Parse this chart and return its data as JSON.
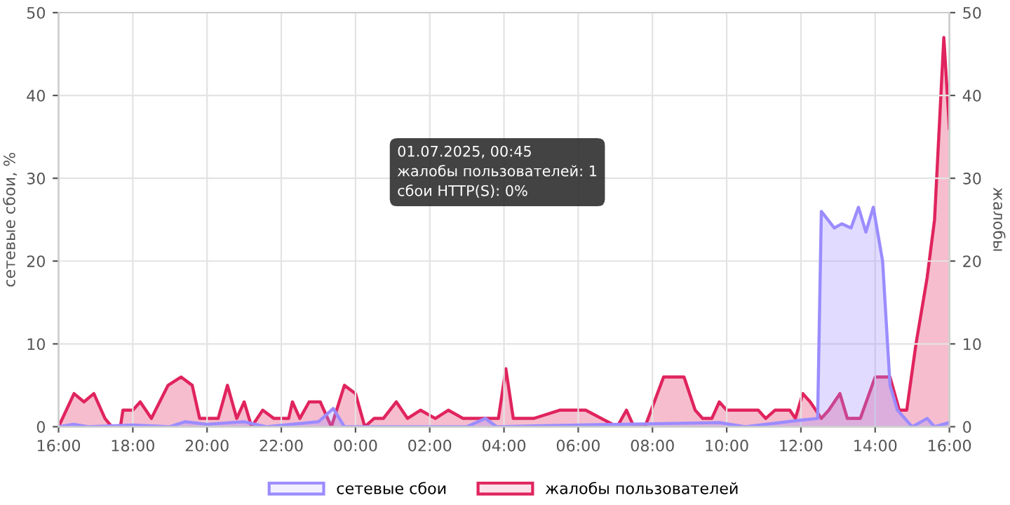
{
  "chart_data": {
    "type": "area",
    "ylabel": "сетевые сбои, %",
    "y2label": "жалобы",
    "xlim": [
      "2025-06-30T16:00",
      "2025-07-01T16:00"
    ],
    "xticks": [
      {
        "value": "2025-06-30T16:00",
        "label": "16:00"
      },
      {
        "value": "2025-06-30T18:00",
        "label": "18:00"
      },
      {
        "value": "2025-06-30T20:00",
        "label": "20:00"
      },
      {
        "value": "2025-06-30T22:00",
        "label": "22:00"
      },
      {
        "value": "2025-07-01T00:00",
        "label": "00:00"
      },
      {
        "value": "2025-07-01T02:00",
        "label": "02:00"
      },
      {
        "value": "2025-07-01T04:00",
        "label": "04:00"
      },
      {
        "value": "2025-07-01T06:00",
        "label": "06:00"
      },
      {
        "value": "2025-07-01T08:00",
        "label": "08:00"
      },
      {
        "value": "2025-07-01T10:00",
        "label": "10:00"
      },
      {
        "value": "2025-07-01T12:00",
        "label": "12:00"
      },
      {
        "value": "2025-07-01T14:00",
        "label": "14:00"
      },
      {
        "value": "2025-07-01T16:00",
        "label": "16:00"
      }
    ],
    "ylim": [
      0,
      50
    ],
    "yticks": [
      0,
      10,
      20,
      30,
      40,
      50
    ],
    "y2lim": [
      0,
      50
    ],
    "y2ticks": [
      0,
      10,
      20,
      30,
      40,
      50
    ],
    "grid": true,
    "legend": "bottom",
    "line_style": "solid",
    "series": [
      {
        "name": "сетевые сбои",
        "color": "#9b8cff",
        "axis": "y",
        "x": [
          "2025-06-30T16:00",
          "2025-06-30T16:24",
          "2025-06-30T16:48",
          "2025-06-30T18:00",
          "2025-06-30T19:00",
          "2025-06-30T19:24",
          "2025-06-30T20:00",
          "2025-06-30T21:00",
          "2025-06-30T21:36",
          "2025-06-30T23:00",
          "2025-06-30T23:24",
          "2025-06-30T23:42",
          "2025-07-01T03:00",
          "2025-07-01T03:30",
          "2025-07-01T03:48",
          "2025-07-01T06:00",
          "2025-07-01T09:48",
          "2025-07-01T10:30",
          "2025-07-01T12:00",
          "2025-07-01T12:27",
          "2025-07-01T12:33",
          "2025-07-01T12:54",
          "2025-07-01T13:06",
          "2025-07-01T13:21",
          "2025-07-01T13:33",
          "2025-07-01T13:45",
          "2025-07-01T13:57",
          "2025-07-01T14:12",
          "2025-07-01T14:24",
          "2025-07-01T14:36",
          "2025-07-01T15:00",
          "2025-07-01T15:24",
          "2025-07-01T15:36",
          "2025-07-01T16:00"
        ],
        "values": [
          0,
          0.3,
          0,
          0.2,
          0,
          0.6,
          0.3,
          0.6,
          0,
          0.6,
          2.2,
          0,
          0,
          1,
          0,
          0.2,
          0.5,
          0,
          0.8,
          1,
          26,
          24,
          24.5,
          24,
          26.5,
          23.5,
          26.5,
          20,
          5,
          2,
          0,
          1,
          0,
          0.5
        ]
      },
      {
        "name": "жалобы пользователей",
        "color": "#e0245e",
        "axis": "y2",
        "x": [
          "2025-06-30T16:00",
          "2025-06-30T16:25",
          "2025-06-30T16:41",
          "2025-06-30T16:57",
          "2025-06-30T17:15",
          "2025-06-30T17:26",
          "2025-06-30T17:40",
          "2025-06-30T17:44",
          "2025-06-30T18:00",
          "2025-06-30T18:12",
          "2025-06-30T18:30",
          "2025-06-30T18:57",
          "2025-06-30T19:18",
          "2025-06-30T19:36",
          "2025-06-30T19:48",
          "2025-06-30T20:18",
          "2025-06-30T20:33",
          "2025-06-30T20:48",
          "2025-06-30T21:00",
          "2025-06-30T21:12",
          "2025-06-30T21:30",
          "2025-06-30T21:48",
          "2025-06-30T22:12",
          "2025-06-30T22:18",
          "2025-06-30T22:30",
          "2025-06-30T22:45",
          "2025-06-30T23:03",
          "2025-06-30T23:21",
          "2025-06-30T23:42",
          "2025-07-01T00:00",
          "2025-07-01T00:15",
          "2025-07-01T00:30",
          "2025-07-01T00:45",
          "2025-07-01T01:06",
          "2025-07-01T01:24",
          "2025-07-01T01:45",
          "2025-07-01T02:09",
          "2025-07-01T02:30",
          "2025-07-01T02:54",
          "2025-07-01T03:51",
          "2025-07-01T04:03",
          "2025-07-01T04:15",
          "2025-07-01T04:48",
          "2025-07-01T05:30",
          "2025-07-01T06:12",
          "2025-07-01T07:03",
          "2025-07-01T07:18",
          "2025-07-01T07:30",
          "2025-07-01T07:48",
          "2025-07-01T08:18",
          "2025-07-01T08:51",
          "2025-07-01T09:09",
          "2025-07-01T09:21",
          "2025-07-01T09:36",
          "2025-07-01T09:48",
          "2025-07-01T10:00",
          "2025-07-01T10:51",
          "2025-07-01T11:03",
          "2025-07-01T11:18",
          "2025-07-01T11:42",
          "2025-07-01T11:51",
          "2025-07-01T12:03",
          "2025-07-01T12:15",
          "2025-07-01T12:33",
          "2025-07-01T12:45",
          "2025-07-01T13:03",
          "2025-07-01T13:15",
          "2025-07-01T13:36",
          "2025-07-01T14:00",
          "2025-07-01T14:24",
          "2025-07-01T14:39",
          "2025-07-01T14:51",
          "2025-07-01T15:06",
          "2025-07-01T15:24",
          "2025-07-01T15:36",
          "2025-07-01T15:51",
          "2025-07-01T16:00"
        ],
        "values": [
          0,
          4,
          3,
          4,
          1,
          0,
          0,
          2,
          2,
          3,
          1,
          5,
          6,
          5,
          1,
          1,
          5,
          1,
          3,
          0,
          2,
          1,
          1,
          3,
          1,
          3,
          3,
          0,
          5,
          4,
          0,
          1,
          1,
          3,
          1,
          2,
          1,
          2,
          1,
          1,
          7,
          1,
          1,
          2,
          2,
          0,
          2,
          0,
          0,
          6,
          6,
          2,
          1,
          1,
          3,
          2,
          2,
          1,
          2,
          2,
          1,
          4,
          3,
          1,
          2,
          4,
          1,
          1,
          6,
          6,
          2,
          2,
          10,
          18,
          25,
          47,
          36
        ]
      }
    ],
    "annotations": [
      "01.07.2025, 00:45",
      "жалобы пользователей: 1",
      "сбои HTTP(S): 0%"
    ]
  }
}
